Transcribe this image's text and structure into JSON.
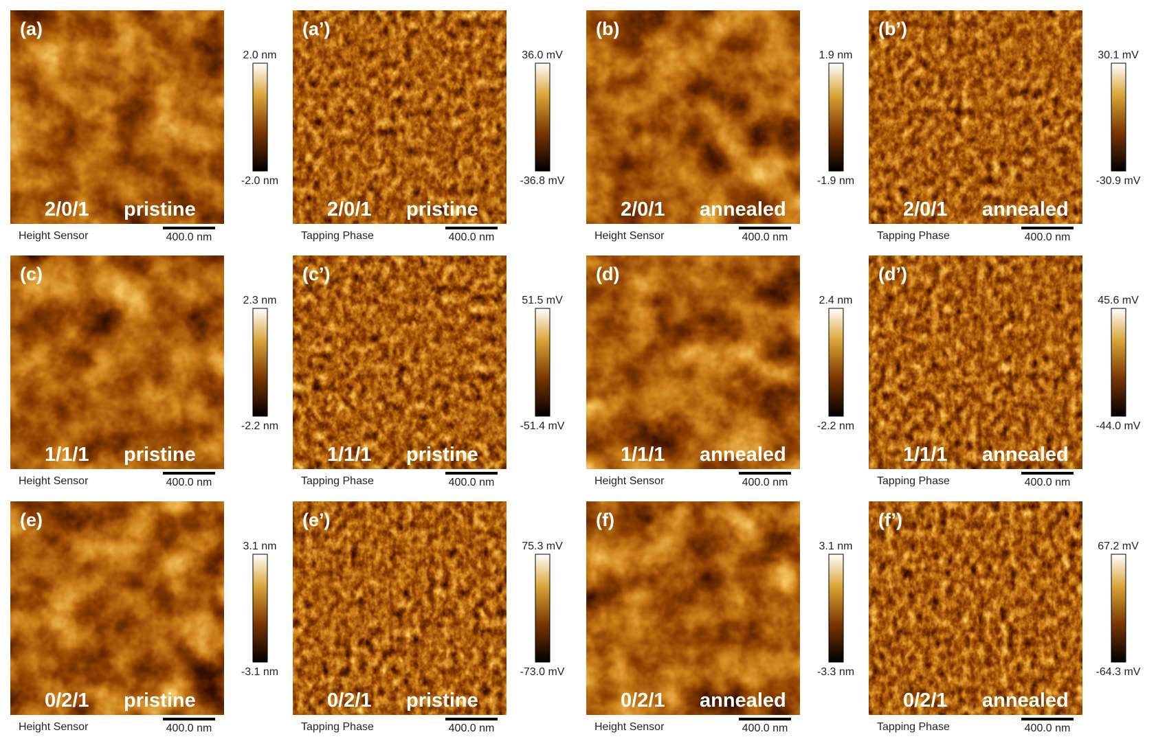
{
  "panels": [
    {
      "label": "(a)",
      "sample": "2/0/1",
      "condition": "pristine",
      "cbar_max": "2.0 nm",
      "cbar_min": "-2.0 nm",
      "sensor": "Height Sensor",
      "scale": "400.0 nm"
    },
    {
      "label": "(a’)",
      "sample": "2/0/1",
      "condition": "pristine",
      "cbar_max": "36.0 mV",
      "cbar_min": "-36.8 mV",
      "sensor": "Tapping Phase",
      "scale": "400.0 nm"
    },
    {
      "label": "(b)",
      "sample": "2/0/1",
      "condition": "annealed",
      "cbar_max": "1.9 nm",
      "cbar_min": "-1.9 nm",
      "sensor": "Height Sensor",
      "scale": "400.0 nm"
    },
    {
      "label": "(b’)",
      "sample": "2/0/1",
      "condition": "annealed",
      "cbar_max": "30.1 mV",
      "cbar_min": "-30.9 mV",
      "sensor": "Tapping Phase",
      "scale": "400.0 nm"
    },
    {
      "label": "(c)",
      "sample": "1/1/1",
      "condition": "pristine",
      "cbar_max": "2.3 nm",
      "cbar_min": "-2.2 nm",
      "sensor": "Height Sensor",
      "scale": "400.0 nm"
    },
    {
      "label": "(c’)",
      "sample": "1/1/1",
      "condition": "pristine",
      "cbar_max": "51.5 mV",
      "cbar_min": "-51.4 mV",
      "sensor": "Tapping Phase",
      "scale": "400.0 nm"
    },
    {
      "label": "(d)",
      "sample": "1/1/1",
      "condition": "annealed",
      "cbar_max": "2.4 nm",
      "cbar_min": "-2.2 nm",
      "sensor": "Height Sensor",
      "scale": "400.0 nm"
    },
    {
      "label": "(d’)",
      "sample": "1/1/1",
      "condition": "annealed",
      "cbar_max": "45.6 mV",
      "cbar_min": "-44.0 mV",
      "sensor": "Tapping Phase",
      "scale": "400.0 nm"
    },
    {
      "label": "(e)",
      "sample": "0/2/1",
      "condition": "pristine",
      "cbar_max": "3.1 nm",
      "cbar_min": "-3.1 nm",
      "sensor": "Height Sensor",
      "scale": "400.0 nm"
    },
    {
      "label": "(e’)",
      "sample": "0/2/1",
      "condition": "pristine",
      "cbar_max": "75.3 mV",
      "cbar_min": "-73.0 mV",
      "sensor": "Tapping Phase",
      "scale": "400.0 nm"
    },
    {
      "label": "(f)",
      "sample": "0/2/1",
      "condition": "annealed",
      "cbar_max": "3.1 nm",
      "cbar_min": "-3.3 nm",
      "sensor": "Height Sensor",
      "scale": "400.0 nm"
    },
    {
      "label": "(f’)",
      "sample": "0/2/1",
      "condition": "annealed",
      "cbar_max": "67.2 mV",
      "cbar_min": "-64.3 mV",
      "sensor": "Tapping Phase",
      "scale": "400.0 nm"
    }
  ]
}
